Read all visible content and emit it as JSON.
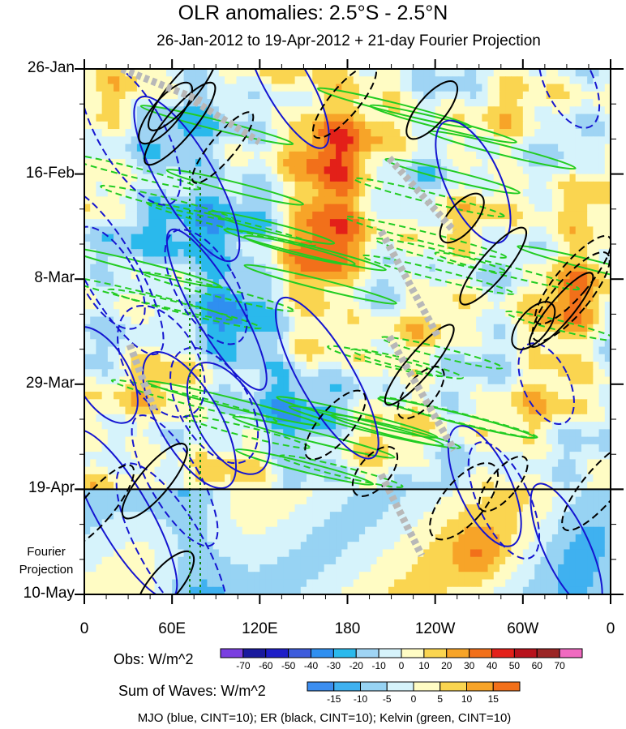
{
  "chart_data": {
    "type": "heatmap",
    "title": "OLR anomalies: 2.5°S - 2.5°N",
    "subtitle": "26-Jan-2012 to 19-Apr-2012 + 21-day Fourier Projection",
    "xlabel": "",
    "ylabel": "",
    "x_ticks": [
      "0",
      "60E",
      "120E",
      "180",
      "120W",
      "60W",
      "0"
    ],
    "x_tick_lon": [
      0,
      60,
      120,
      180,
      240,
      300,
      360
    ],
    "y_ticks": [
      "26-Jan",
      "16-Feb",
      "8-Mar",
      "29-Mar",
      "19-Apr",
      "10-May"
    ],
    "y_tick_day": [
      0,
      21,
      42,
      63,
      84,
      105
    ],
    "projection_start_day": 84,
    "projection_label": "Fourier Projection",
    "projection_label_lines": [
      "Fourier",
      "Projection"
    ],
    "obs_colorbar": {
      "label": "Obs: W/m^2",
      "levels": [
        "-70",
        "-60",
        "-50",
        "-40",
        "-30",
        "-20",
        "-10",
        "0",
        "10",
        "20",
        "30",
        "40",
        "50",
        "60",
        "70"
      ],
      "colors": [
        "#7a3fe0",
        "#1a1a9e",
        "#1f1fc8",
        "#3d5cdc",
        "#2f8ff0",
        "#2ab9ec",
        "#9fd4f4",
        "#d6f3fb",
        "#fffcc4",
        "#fad550",
        "#f7a428",
        "#f2701a",
        "#e32019",
        "#b8121c",
        "#9b2525",
        "#f06ac0"
      ]
    },
    "waves_colorbar": {
      "label": "Sum of Waves: W/m^2",
      "levels": [
        "-15",
        "-10",
        "-5",
        "0",
        "5",
        "10",
        "15"
      ],
      "colors": [
        "#3c8ef0",
        "#3fb1f0",
        "#97d3f3",
        "#d6f3fb",
        "#fffcc4",
        "#fad550",
        "#f7a428",
        "#f2701a"
      ]
    },
    "footer": "MJO (blue, CINT=10); ER (black, CINT=10); Kelvin (green, CINT=10)",
    "series_colors": {
      "mjo": "#1515d0",
      "er": "#000000",
      "kelvin": "#22cc22",
      "marker": "#b8b8b8",
      "guide": "#118811"
    }
  }
}
